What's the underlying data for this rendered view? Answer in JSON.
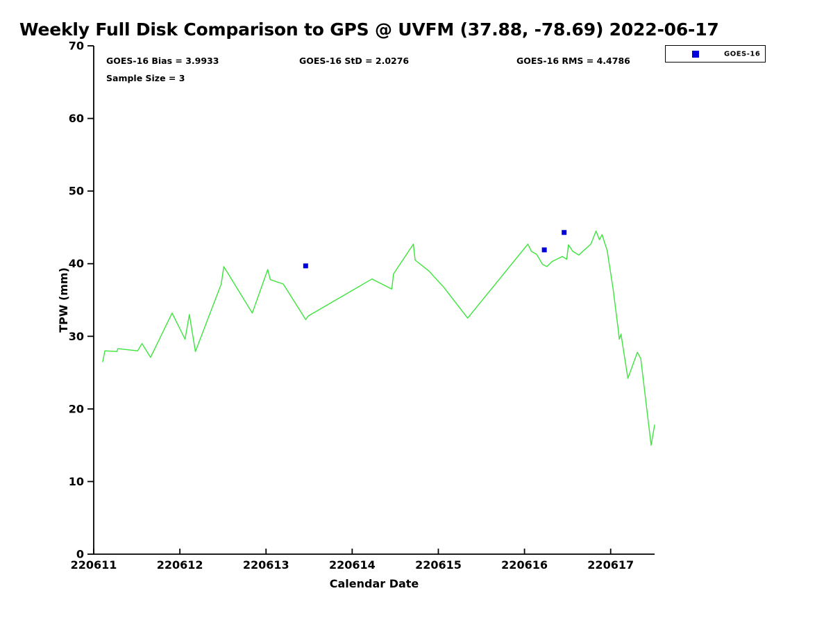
{
  "title": "Weekly Full Disk Comparison to GPS @ UVFM (37.88, -78.69) 2022-06-17",
  "stats": {
    "bias": "GOES-16 Bias = 3.9933",
    "std": "GOES-16 StD = 2.0276",
    "rms": "GOES-16 RMS = 4.4786",
    "sample": "Sample Size = 3"
  },
  "legend": {
    "entries": [
      {
        "label": "GOES-16",
        "marker": "square",
        "color": "#0000dd"
      }
    ]
  },
  "colors": {
    "background": "#ffffff",
    "axis": "#000000",
    "line": "#3ce43c",
    "marker": "#0000dd"
  },
  "chart_data": {
    "type": "line",
    "title": "Weekly Full Disk Comparison to GPS @ UVFM (37.88, -78.69) 2022-06-17",
    "xlabel": "Calendar Date",
    "ylabel": "TPW (mm)",
    "xlim": [
      220611,
      220617.51
    ],
    "ylim": [
      0,
      70
    ],
    "xticks": [
      220611,
      220612,
      220613,
      220614,
      220615,
      220616,
      220617
    ],
    "xtick_labels": [
      "220611",
      "220612",
      "220613",
      "220614",
      "220615",
      "220616",
      "220617"
    ],
    "yticks": [
      0,
      10,
      20,
      30,
      40,
      50,
      60,
      70
    ],
    "ytick_labels": [
      "0",
      "10",
      "20",
      "30",
      "40",
      "50",
      "60",
      "70"
    ],
    "grid": false,
    "legend_position": "top-right-outside",
    "series": [
      {
        "name": "GPS TPW",
        "type": "line",
        "color": "#3ce43c",
        "points": [
          [
            220611.105,
            26.5
          ],
          [
            220611.13,
            28.0
          ],
          [
            220611.27,
            27.9
          ],
          [
            220611.28,
            28.3
          ],
          [
            220611.51,
            28.0
          ],
          [
            220611.56,
            29.0
          ],
          [
            220611.66,
            27.1
          ],
          [
            220611.91,
            33.2
          ],
          [
            220612.06,
            29.6
          ],
          [
            220612.11,
            33.0
          ],
          [
            220612.18,
            27.9
          ],
          [
            220612.48,
            37.2
          ],
          [
            220612.51,
            39.6
          ],
          [
            220612.84,
            33.2
          ],
          [
            220613.02,
            39.2
          ],
          [
            220613.05,
            37.8
          ],
          [
            220613.2,
            37.2
          ],
          [
            220613.44,
            32.7
          ],
          [
            220613.46,
            32.3
          ],
          [
            220613.49,
            32.8
          ],
          [
            220614.23,
            37.9
          ],
          [
            220614.46,
            36.5
          ],
          [
            220614.48,
            38.6
          ],
          [
            220614.71,
            42.7
          ],
          [
            220614.73,
            40.5
          ],
          [
            220614.89,
            39.0
          ],
          [
            220615.06,
            36.8
          ],
          [
            220615.34,
            32.5
          ],
          [
            220616.04,
            42.7
          ],
          [
            220616.08,
            41.7
          ],
          [
            220616.14,
            41.3
          ],
          [
            220616.21,
            39.9
          ],
          [
            220616.26,
            39.6
          ],
          [
            220616.32,
            40.3
          ],
          [
            220616.44,
            41.0
          ],
          [
            220616.49,
            40.6
          ],
          [
            220616.51,
            42.6
          ],
          [
            220616.56,
            41.7
          ],
          [
            220616.63,
            41.2
          ],
          [
            220616.77,
            42.7
          ],
          [
            220616.83,
            44.5
          ],
          [
            220616.87,
            43.3
          ],
          [
            220616.9,
            44.0
          ],
          [
            220616.96,
            41.8
          ],
          [
            220617.03,
            36.4
          ],
          [
            220617.09,
            30.7
          ],
          [
            220617.1,
            29.6
          ],
          [
            220617.12,
            30.3
          ],
          [
            220617.2,
            24.2
          ],
          [
            220617.31,
            27.8
          ],
          [
            220617.35,
            26.9
          ],
          [
            220617.47,
            15.0
          ],
          [
            220617.51,
            17.8
          ]
        ]
      },
      {
        "name": "GOES-16",
        "type": "scatter",
        "marker": "square",
        "color": "#0000dd",
        "points": [
          [
            220613.46,
            39.7
          ],
          [
            220616.23,
            41.9
          ],
          [
            220616.46,
            44.3
          ]
        ]
      }
    ]
  }
}
